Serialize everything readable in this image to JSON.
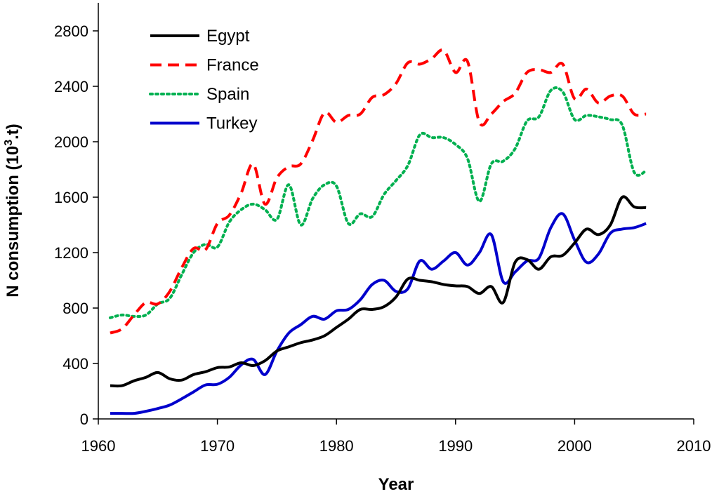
{
  "chart_data": {
    "type": "line",
    "title": "",
    "xlabel": "Year",
    "ylabel": "N consumption (10",
    "ylabel_sup": "3",
    "ylabel_suffix": ".t)",
    "xlim": [
      1960,
      2010
    ],
    "ylim": [
      0,
      2800
    ],
    "xticks": [
      1960,
      1970,
      1980,
      1990,
      2000,
      2010
    ],
    "yticks": [
      0,
      400,
      800,
      1200,
      1600,
      2000,
      2400,
      2800
    ],
    "grid": false,
    "legend_position": "top-left",
    "x": [
      1961,
      1962,
      1963,
      1964,
      1965,
      1966,
      1967,
      1968,
      1969,
      1970,
      1971,
      1972,
      1973,
      1974,
      1975,
      1976,
      1977,
      1978,
      1979,
      1980,
      1981,
      1982,
      1983,
      1984,
      1985,
      1986,
      1987,
      1988,
      1989,
      1990,
      1991,
      1992,
      1993,
      1994,
      1995,
      1996,
      1997,
      1998,
      1999,
      2000,
      2001,
      2002,
      2003,
      2004,
      2005,
      2006
    ],
    "series": [
      {
        "name": "Egypt",
        "color": "#000000",
        "dash": "solid",
        "values": [
          240,
          240,
          275,
          300,
          335,
          290,
          280,
          320,
          340,
          370,
          375,
          405,
          385,
          420,
          490,
          520,
          550,
          570,
          600,
          660,
          720,
          790,
          790,
          810,
          880,
          1010,
          1000,
          990,
          970,
          960,
          955,
          905,
          955,
          840,
          1130,
          1150,
          1080,
          1170,
          1180,
          1270,
          1370,
          1330,
          1400,
          1600,
          1530,
          1525
        ]
      },
      {
        "name": "France",
        "color": "#ff0000",
        "dash": "dashed",
        "values": [
          620,
          650,
          750,
          840,
          830,
          920,
          1090,
          1230,
          1220,
          1410,
          1470,
          1630,
          1840,
          1550,
          1740,
          1820,
          1840,
          2010,
          2210,
          2140,
          2190,
          2200,
          2320,
          2340,
          2420,
          2570,
          2560,
          2600,
          2660,
          2500,
          2580,
          2140,
          2200,
          2290,
          2350,
          2500,
          2520,
          2500,
          2560,
          2310,
          2380,
          2280,
          2330,
          2330,
          2200,
          2200
        ]
      },
      {
        "name": "Spain",
        "color": "#00b050",
        "dash": "dotted",
        "values": [
          730,
          750,
          740,
          750,
          830,
          870,
          1040,
          1200,
          1260,
          1240,
          1420,
          1510,
          1550,
          1510,
          1440,
          1690,
          1400,
          1590,
          1690,
          1680,
          1410,
          1480,
          1460,
          1620,
          1720,
          1830,
          2050,
          2030,
          2030,
          1980,
          1880,
          1570,
          1840,
          1860,
          1950,
          2150,
          2180,
          2370,
          2360,
          2160,
          2190,
          2180,
          2160,
          2120,
          1780,
          1790
        ]
      },
      {
        "name": "Turkey",
        "color": "#0000cc",
        "dash": "solid",
        "values": [
          40,
          40,
          40,
          55,
          75,
          100,
          145,
          195,
          245,
          250,
          300,
          390,
          430,
          320,
          490,
          620,
          680,
          740,
          720,
          780,
          790,
          860,
          970,
          1000,
          920,
          940,
          1140,
          1080,
          1140,
          1200,
          1110,
          1200,
          1330,
          990,
          1060,
          1140,
          1160,
          1380,
          1480,
          1290,
          1130,
          1190,
          1340,
          1370,
          1380,
          1410
        ]
      }
    ]
  }
}
